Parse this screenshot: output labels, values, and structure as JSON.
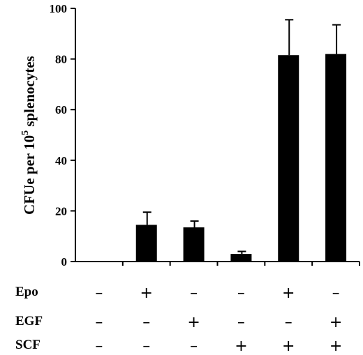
{
  "chart_data": {
    "type": "bar",
    "ylabel_main": "CFUe per 10",
    "ylabel_sup": "5",
    "ylabel_tail": " splenocytes",
    "ylim": [
      0,
      100
    ],
    "yticks": [
      0,
      20,
      40,
      60,
      80,
      100
    ],
    "values": [
      0,
      14.5,
      13.5,
      3,
      81.5,
      82
    ],
    "errors": [
      0,
      5,
      2.5,
      1,
      14,
      11.5
    ],
    "grid": false,
    "legend": "none"
  },
  "conditions": {
    "rows": [
      {
        "label": "Epo",
        "values": [
          "–",
          "+",
          "–",
          "–",
          "+",
          "–"
        ]
      },
      {
        "label": "EGF",
        "values": [
          "–",
          "–",
          "+",
          "–",
          "–",
          "+"
        ]
      },
      {
        "label": "SCF",
        "values": [
          "–",
          "–",
          "–",
          "+",
          "+",
          "+"
        ]
      }
    ]
  },
  "colors": {
    "bar": "#000000",
    "axis": "#000000"
  }
}
